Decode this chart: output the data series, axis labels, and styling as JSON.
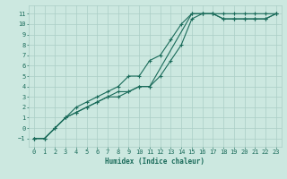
{
  "title": "",
  "xlabel": "Humidex (Indice chaleur)",
  "bg_color": "#cce8e0",
  "grid_color": "#aacec6",
  "line_color": "#1a6b5a",
  "xlim": [
    -0.5,
    23.5
  ],
  "ylim": [
    -1.8,
    11.8
  ],
  "xticks": [
    0,
    1,
    2,
    3,
    4,
    5,
    6,
    7,
    8,
    9,
    10,
    11,
    12,
    13,
    14,
    15,
    16,
    17,
    18,
    19,
    20,
    21,
    22,
    23
  ],
  "yticks": [
    -1,
    0,
    1,
    2,
    3,
    4,
    5,
    6,
    7,
    8,
    9,
    10,
    11
  ],
  "line1_x": [
    0,
    1,
    2,
    3,
    4,
    5,
    6,
    7,
    8,
    9,
    10,
    11,
    15,
    16,
    17,
    18,
    19,
    20,
    21,
    22,
    23
  ],
  "line1_y": [
    -1,
    -1,
    0,
    1,
    1.5,
    2,
    2.5,
    3,
    3,
    3.5,
    4,
    4,
    11,
    11,
    11,
    10.5,
    10.5,
    10.5,
    10.5,
    10.5,
    11
  ],
  "line2_x": [
    0,
    1,
    2,
    3,
    4,
    5,
    6,
    7,
    8,
    9,
    10,
    11,
    12,
    13,
    14,
    15,
    16,
    17,
    18,
    19,
    20,
    21,
    22,
    23
  ],
  "line2_y": [
    -1,
    -1,
    0,
    1,
    2,
    2.5,
    3,
    3.5,
    4,
    5,
    5,
    6.5,
    7,
    8.5,
    10,
    11,
    11,
    11,
    11,
    11,
    11,
    11,
    11,
    11
  ],
  "line3_x": [
    0,
    1,
    2,
    3,
    4,
    5,
    6,
    7,
    8,
    9,
    10,
    11,
    12,
    13,
    14,
    15,
    16,
    17,
    18,
    19,
    20,
    21,
    22,
    23
  ],
  "line3_y": [
    -1,
    -1,
    0,
    1,
    1.5,
    2,
    2.5,
    3,
    3.5,
    3.5,
    4,
    4,
    5,
    6.5,
    8,
    10.5,
    11,
    11,
    10.5,
    10.5,
    10.5,
    10.5,
    10.5,
    11
  ],
  "xlabel_fontsize": 5.5,
  "tick_fontsize": 5.0
}
